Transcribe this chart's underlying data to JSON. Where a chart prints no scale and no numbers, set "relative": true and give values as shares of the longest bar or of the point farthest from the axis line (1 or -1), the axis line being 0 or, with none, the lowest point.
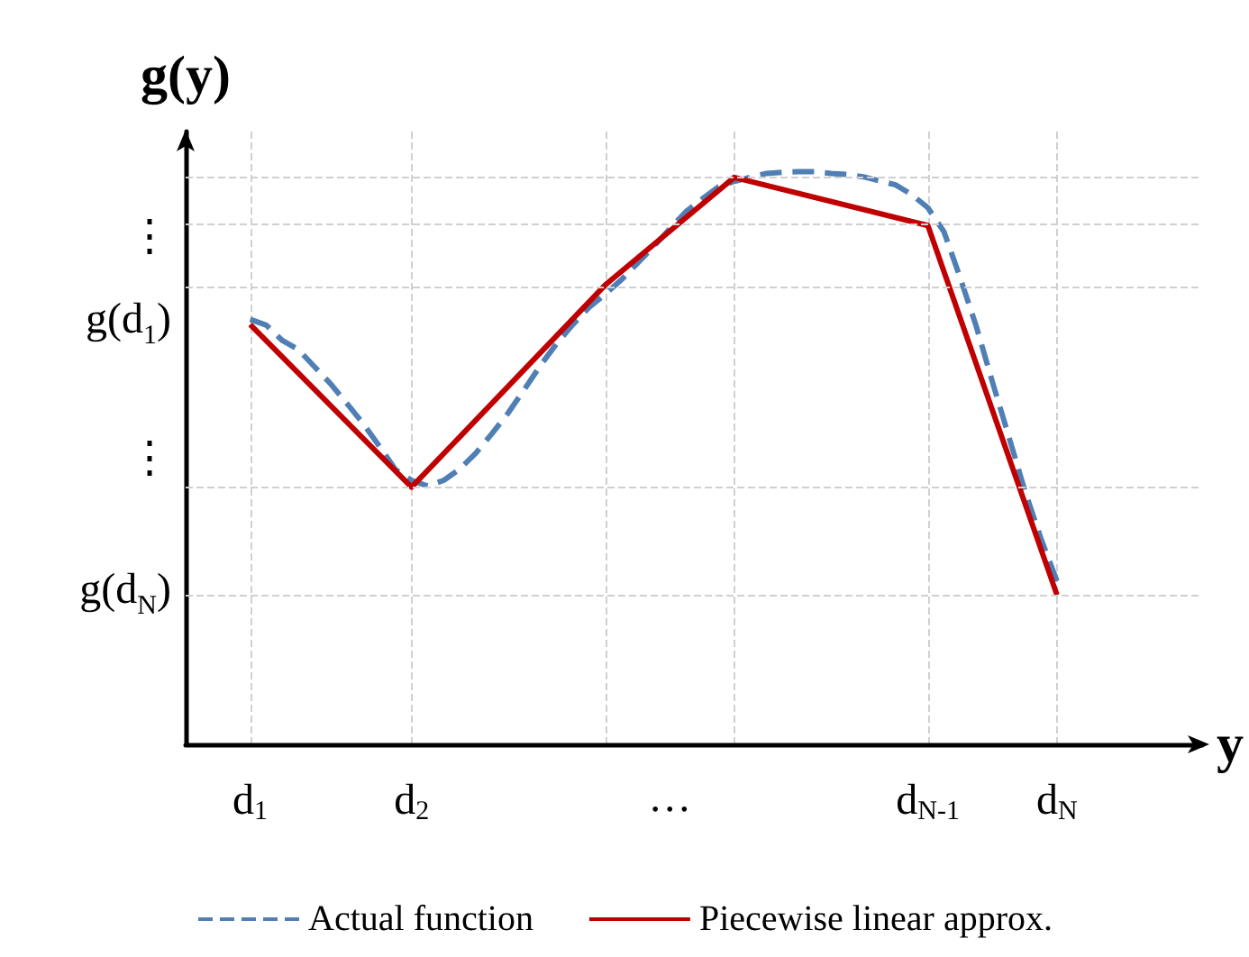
{
  "chart_data": {
    "type": "line",
    "xlabel": "y",
    "ylabel": "g(y)",
    "relative": true,
    "categories": [
      "d$_{1}$",
      null,
      null,
      null,
      null,
      null,
      null,
      null,
      null,
      null,
      "d$_{2}$",
      null,
      null,
      null,
      null,
      null,
      null,
      null,
      null,
      null,
      null,
      null,
      null,
      null,
      null,
      null,
      "…",
      null,
      null,
      null,
      null,
      null,
      null,
      null,
      null,
      null,
      null,
      null,
      null,
      null,
      null,
      null,
      "d$_{N-1}$",
      null,
      null,
      null,
      null,
      null,
      null,
      null,
      "d$_{N}$"
    ],
    "series": [
      {
        "name": "Actual function",
        "color": "#4f7fb5",
        "line_style": "dashed",
        "values": [
          0.742,
          0.732,
          0.705,
          0.689,
          0.659,
          0.629,
          0.595,
          0.56,
          0.521,
          0.48,
          0.461,
          0.451,
          0.461,
          0.481,
          0.509,
          0.543,
          0.579,
          0.62,
          0.662,
          0.7,
          0.733,
          0.763,
          0.786,
          0.811,
          0.84,
          0.869,
          0.9,
          0.93,
          0.952,
          0.973,
          0.983,
          0.99,
          0.997,
          0.999,
          1,
          1,
          0.997,
          0.995,
          0.991,
          0.984,
          0.977,
          0.96,
          0.937,
          0.895,
          0.815,
          0.73,
          0.633,
          0.539,
          0.444,
          0.36,
          0.285
        ]
      },
      {
        "name": "Piecewise linear approx.",
        "color": "#c00000",
        "line_style": "solid",
        "values": [
          0.733,
          null,
          null,
          null,
          null,
          null,
          null,
          null,
          null,
          null,
          0.449,
          null,
          null,
          null,
          null,
          null,
          null,
          null,
          null,
          null,
          null,
          null,
          0.802,
          null,
          null,
          null,
          null,
          null,
          null,
          null,
          0.99,
          null,
          null,
          null,
          null,
          null,
          null,
          null,
          null,
          null,
          null,
          null,
          0.906,
          null,
          null,
          null,
          null,
          null,
          null,
          null,
          0.261
        ]
      }
    ],
    "annotations": [
      "g(d$_{N}$)",
      "⋮",
      "g(d$_{1}$)",
      "⋮"
    ],
    "ref_lines": [
      {
        "axis": "y",
        "value": 0.261,
        "color": "#d0d0d0",
        "line_style": "dashed"
      },
      {
        "axis": "y",
        "value": 0.449,
        "color": "#d0d0d0",
        "line_style": "dashed"
      },
      {
        "axis": "y",
        "value": 0.802,
        "color": "#d0d0d0",
        "line_style": "dashed"
      },
      {
        "axis": "y",
        "value": 0.906,
        "color": "#d0d0d0",
        "line_style": "dashed"
      },
      {
        "axis": "y",
        "value": 0.99,
        "color": "#d0d0d0",
        "line_style": "dashed"
      }
    ],
    "grid": "x",
    "marker": "none",
    "legend": "bottom"
  }
}
